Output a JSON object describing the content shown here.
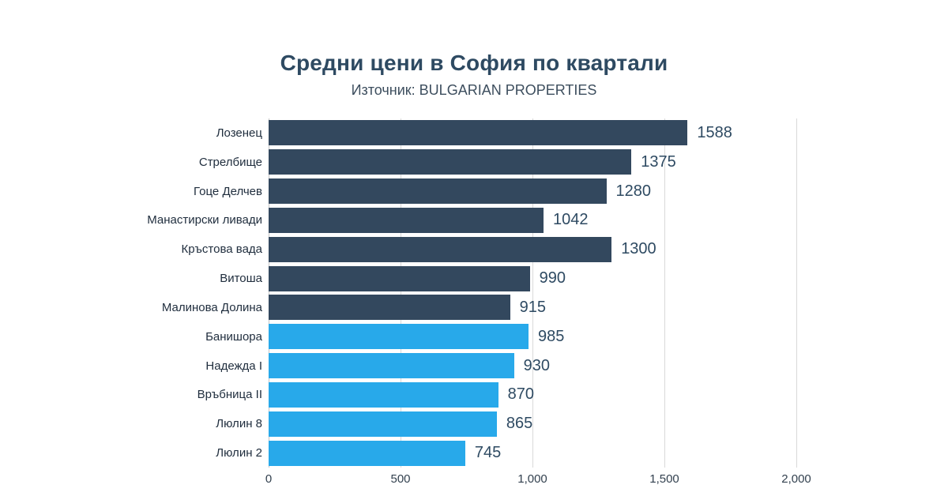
{
  "header": {
    "title": "Средни цени в София по квартали",
    "subtitle": "Източник: BULGARIAN PROPERTIES"
  },
  "colors": {
    "dark_bar": "#33485e",
    "light_bar": "#28a9ea",
    "value_text": "#2e4a62",
    "gridline": "#d9d9d9"
  },
  "chart_data": {
    "type": "bar",
    "orientation": "horizontal",
    "title": "Средни цени в София по квартали",
    "subtitle": "Източник: BULGARIAN PROPERTIES",
    "xlim": [
      0,
      2000
    ],
    "grid": true,
    "categories": [
      "Лозенец",
      "Стрелбище",
      "Гоце Делчев",
      "Манастирски ливади",
      "Кръстова вада",
      "Витоша",
      "Малинова Долина",
      "Банишора",
      "Надежда I",
      "Връбница II",
      "Люлин 8",
      "Люлин 2"
    ],
    "values": [
      1588,
      1375,
      1280,
      1042,
      1300,
      990,
      915,
      985,
      930,
      870,
      865,
      745
    ],
    "bar_colors": [
      "dark",
      "dark",
      "dark",
      "dark",
      "dark",
      "dark",
      "dark",
      "light",
      "light",
      "light",
      "light",
      "light"
    ],
    "x_ticks": [
      {
        "value": 0,
        "label": "0"
      },
      {
        "value": 500,
        "label": "500"
      },
      {
        "value": 1000,
        "label": "1,000"
      },
      {
        "value": 1500,
        "label": "1,500"
      },
      {
        "value": 2000,
        "label": "2,000"
      }
    ]
  }
}
